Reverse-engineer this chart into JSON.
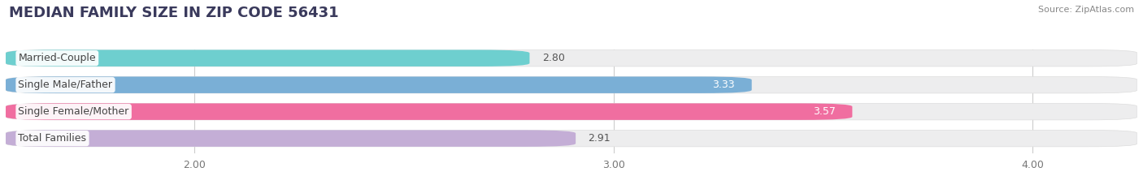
{
  "title": "MEDIAN FAMILY SIZE IN ZIP CODE 56431",
  "source": "Source: ZipAtlas.com",
  "categories": [
    "Married-Couple",
    "Single Male/Father",
    "Single Female/Mother",
    "Total Families"
  ],
  "values": [
    2.8,
    3.33,
    3.57,
    2.91
  ],
  "bar_colors": [
    "#6ecfcf",
    "#7aafd6",
    "#f06ea0",
    "#c4aed6"
  ],
  "bar_bg_color": "#ededee",
  "background_color": "#ffffff",
  "xlim_min": 1.55,
  "xlim_max": 4.25,
  "xticks": [
    2.0,
    3.0,
    4.0
  ],
  "x_axis_start": 1.55,
  "title_fontsize": 13,
  "label_fontsize": 9,
  "value_fontsize": 9,
  "source_fontsize": 8,
  "bar_height": 0.62,
  "value_white_threshold": 3.2
}
